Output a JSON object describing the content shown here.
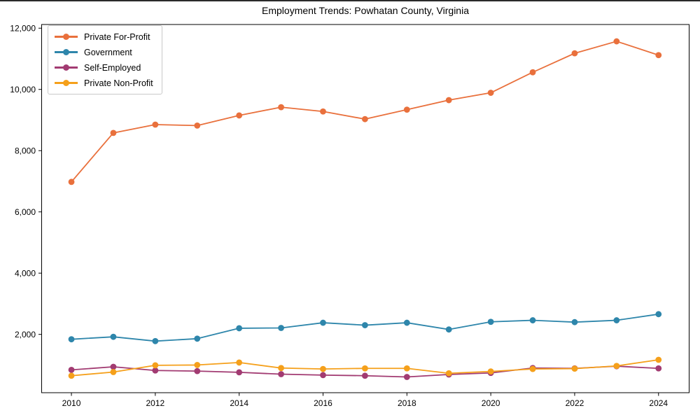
{
  "chart_data": {
    "type": "line",
    "title": "Employment Trends: Powhatan County, Virginia",
    "xlabel": "",
    "ylabel": "",
    "x": [
      2010,
      2011,
      2012,
      2013,
      2014,
      2015,
      2016,
      2017,
      2018,
      2019,
      2020,
      2021,
      2022,
      2023,
      2024
    ],
    "series": [
      {
        "name": "Private For-Profit",
        "color": "#E9703C",
        "values": [
          6980,
          8580,
          8850,
          8820,
          9150,
          9420,
          9280,
          9030,
          9340,
          9650,
          9890,
          10560,
          11180,
          11570,
          11120
        ]
      },
      {
        "name": "Government",
        "color": "#2E86AB",
        "values": [
          1840,
          1920,
          1780,
          1860,
          2200,
          2210,
          2380,
          2300,
          2380,
          2160,
          2410,
          2460,
          2400,
          2460,
          2660
        ]
      },
      {
        "name": "Self-Employed",
        "color": "#A23B72",
        "values": [
          840,
          940,
          820,
          800,
          760,
          700,
          670,
          650,
          610,
          690,
          740,
          900,
          890,
          960,
          890
        ]
      },
      {
        "name": "Private Non-Profit",
        "color": "#F5A01B",
        "values": [
          650,
          770,
          990,
          1000,
          1080,
          900,
          870,
          890,
          890,
          730,
          790,
          870,
          880,
          970,
          1170
        ]
      }
    ],
    "x_ticks": [
      2010,
      2012,
      2014,
      2016,
      2018,
      2020,
      2022,
      2024
    ],
    "x_tick_labels": [
      "2010",
      "2012",
      "2014",
      "2016",
      "2018",
      "2020",
      "2022",
      "2024"
    ],
    "y_ticks": [
      2000,
      4000,
      6000,
      8000,
      10000,
      12000
    ],
    "y_tick_labels": [
      "2,000",
      "4,000",
      "6,000",
      "8,000",
      "10,000",
      "12,000"
    ],
    "xlim": [
      2009.29,
      2024.73
    ],
    "ylim": [
      95,
      12120
    ],
    "legend_position": "upper left",
    "grid": false,
    "marker": "circle",
    "frame_color": "#000000",
    "background_color": "#ffffff"
  }
}
